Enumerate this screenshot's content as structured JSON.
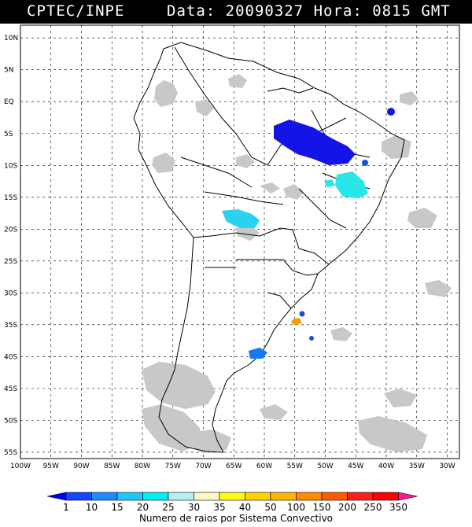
{
  "header": {
    "source": "CPTEC/INPE",
    "datetime": "Data: 20090327 Hora: 0815 GMT"
  },
  "map": {
    "lat_labels": [
      "10N",
      "5N",
      "EQ",
      "5S",
      "10S",
      "15S",
      "20S",
      "25S",
      "30S",
      "35S",
      "40S",
      "45S",
      "50S",
      "55S"
    ],
    "lon_labels": [
      "100W",
      "95W",
      "90W",
      "85W",
      "80W",
      "75W",
      "70W",
      "65W",
      "60W",
      "55W",
      "50W",
      "45W",
      "40W",
      "35W",
      "30W"
    ],
    "colors": {
      "cloud": "#c8c8c8",
      "coast": "#000000",
      "grid": "#000000"
    }
  },
  "colorbar": {
    "ticks": [
      "1",
      "10",
      "15",
      "20",
      "25",
      "30",
      "35",
      "40",
      "50",
      "100",
      "150",
      "200",
      "250",
      "350"
    ],
    "colors": [
      "#0000f0",
      "#1446ff",
      "#1e8cff",
      "#1ec8ff",
      "#00f0f0",
      "#b4f0f0",
      "#fafac8",
      "#fffa14",
      "#ffd200",
      "#ffb400",
      "#ff8c00",
      "#ff5a00",
      "#ff1e1e",
      "#ff0000",
      "#ff1493"
    ],
    "caption": "Numero de raios por Sistema Convectivo"
  }
}
